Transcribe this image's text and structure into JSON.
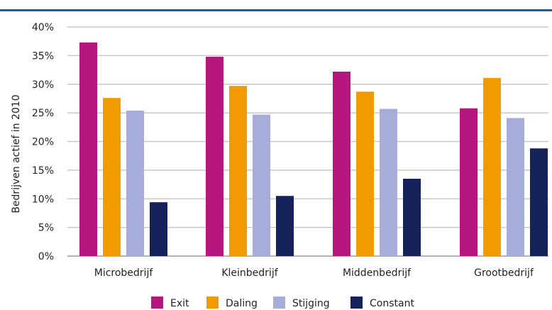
{
  "chart_data": {
    "type": "bar",
    "title": "",
    "xlabel": "",
    "ylabel": "Bedrijven actief in 2010",
    "ylim": [
      0,
      40
    ],
    "yticks": [
      "0%",
      "5%",
      "10%",
      "15%",
      "20%",
      "25%",
      "30%",
      "35%",
      "40%"
    ],
    "grid": true,
    "legend_position": "bottom",
    "categories": [
      "Microbedrijf",
      "Kleinbedrijf",
      "Middenbedrijf",
      "Grootbedrijf"
    ],
    "series": [
      {
        "name": "Exit",
        "color": "#b5177f",
        "values": [
          37.3,
          34.8,
          32.2,
          25.8
        ]
      },
      {
        "name": "Daling",
        "color": "#f29b00",
        "values": [
          27.6,
          29.7,
          28.7,
          31.1
        ]
      },
      {
        "name": "Stijging",
        "color": "#a6add9",
        "values": [
          25.4,
          24.7,
          25.7,
          24.1
        ]
      },
      {
        "name": "Constant",
        "color": "#15235a",
        "values": [
          9.4,
          10.5,
          13.5,
          18.8
        ]
      }
    ]
  }
}
